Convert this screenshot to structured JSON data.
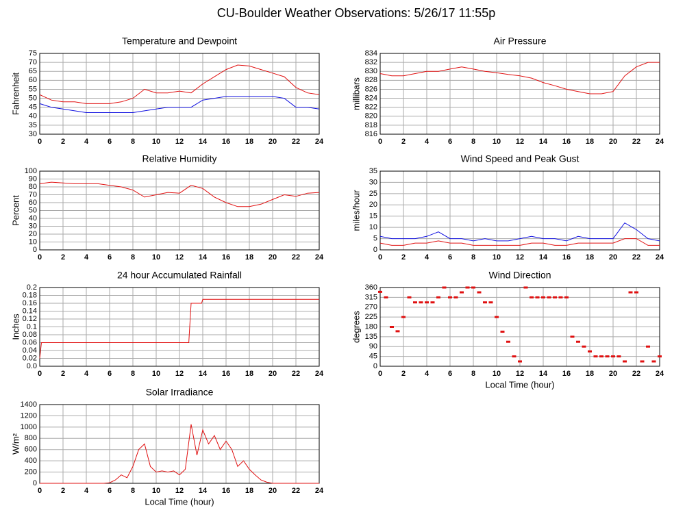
{
  "title": "CU-Boulder Weather Observations: 5/26/17 11:55p",
  "chart_data": [
    {
      "type": "line",
      "title": "Temperature and Dewpoint",
      "ylabel": "Fahrenheit",
      "x": [
        0,
        1,
        2,
        3,
        4,
        5,
        6,
        7,
        8,
        9,
        10,
        11,
        12,
        13,
        14,
        15,
        16,
        17,
        18,
        19,
        20,
        21,
        22,
        23,
        24
      ],
      "series": [
        {
          "name": "Temperature",
          "color": "#e01010",
          "values": [
            52,
            49,
            48,
            48,
            47,
            47,
            47,
            48,
            50,
            55,
            53,
            53,
            54,
            53,
            58,
            62,
            66,
            68.5,
            68,
            66,
            64,
            62,
            56,
            53,
            52
          ]
        },
        {
          "name": "Dewpoint",
          "color": "#1010e0",
          "values": [
            47,
            45,
            44,
            43,
            42,
            42,
            42,
            42,
            42,
            43,
            44,
            45,
            45,
            45,
            49,
            50,
            51,
            51,
            51,
            51,
            51,
            50,
            45,
            45,
            44
          ]
        }
      ],
      "xlim": [
        0,
        24
      ],
      "xticks": [
        0,
        2,
        4,
        6,
        8,
        10,
        12,
        14,
        16,
        18,
        20,
        22,
        24
      ],
      "ylim": [
        30,
        75
      ],
      "yticks": [
        30,
        35,
        40,
        45,
        50,
        55,
        60,
        65,
        70,
        75
      ],
      "grid": true
    },
    {
      "type": "line",
      "title": "Air Pressure",
      "ylabel": "millibars",
      "x": [
        0,
        1,
        2,
        3,
        4,
        5,
        6,
        7,
        8,
        9,
        10,
        11,
        12,
        13,
        14,
        15,
        16,
        17,
        18,
        19,
        20,
        21,
        22,
        23,
        24
      ],
      "series": [
        {
          "name": "Pressure",
          "color": "#e01010",
          "values": [
            829.5,
            829,
            829,
            829.5,
            830,
            830,
            830.5,
            831,
            830.5,
            830,
            829.7,
            829.3,
            829,
            828.5,
            827.5,
            826.8,
            826,
            825.5,
            825,
            825,
            825.5,
            829,
            831,
            832,
            832
          ]
        }
      ],
      "xlim": [
        0,
        24
      ],
      "xticks": [
        0,
        2,
        4,
        6,
        8,
        10,
        12,
        14,
        16,
        18,
        20,
        22,
        24
      ],
      "ylim": [
        816,
        834
      ],
      "yticks": [
        816,
        818,
        820,
        822,
        824,
        826,
        828,
        830,
        832,
        834
      ],
      "grid": true
    },
    {
      "type": "line",
      "title": "Relative Humidity",
      "ylabel": "Percent",
      "x": [
        0,
        1,
        2,
        3,
        4,
        5,
        6,
        7,
        8,
        9,
        10,
        11,
        12,
        13,
        14,
        15,
        16,
        17,
        18,
        19,
        20,
        21,
        22,
        23,
        24
      ],
      "series": [
        {
          "name": "Humidity",
          "color": "#e01010",
          "values": [
            84,
            86,
            85,
            84,
            84,
            84,
            82,
            80,
            76,
            67,
            70,
            73,
            72,
            82,
            78,
            67,
            60,
            55,
            55,
            58,
            64,
            70,
            68,
            72,
            73
          ]
        }
      ],
      "xlim": [
        0,
        24
      ],
      "xticks": [
        0,
        2,
        4,
        6,
        8,
        10,
        12,
        14,
        16,
        18,
        20,
        22,
        24
      ],
      "ylim": [
        0,
        100
      ],
      "yticks": [
        0,
        10,
        20,
        30,
        40,
        50,
        60,
        70,
        80,
        90,
        100
      ],
      "grid": true
    },
    {
      "type": "line",
      "title": "Wind Speed and Peak Gust",
      "ylabel": "miles/hour",
      "x": [
        0,
        1,
        2,
        3,
        4,
        5,
        6,
        7,
        8,
        9,
        10,
        11,
        12,
        13,
        14,
        15,
        16,
        17,
        18,
        19,
        20,
        21,
        22,
        23,
        24
      ],
      "series": [
        {
          "name": "Peak Gust",
          "color": "#1010e0",
          "values": [
            6,
            5,
            5,
            5,
            6,
            8,
            5,
            5,
            4,
            5,
            4,
            4,
            5,
            6,
            5,
            5,
            4,
            6,
            5,
            5,
            5,
            12,
            9,
            5,
            4
          ]
        },
        {
          "name": "Wind Speed",
          "color": "#e01010",
          "values": [
            3,
            2,
            2,
            3,
            3,
            4,
            3,
            3,
            2,
            2,
            2,
            2,
            2,
            3,
            3,
            2,
            2,
            3,
            3,
            3,
            3,
            5,
            5,
            2,
            2
          ]
        }
      ],
      "xlim": [
        0,
        24
      ],
      "xticks": [
        0,
        2,
        4,
        6,
        8,
        10,
        12,
        14,
        16,
        18,
        20,
        22,
        24
      ],
      "ylim": [
        0,
        35
      ],
      "yticks": [
        0,
        5,
        10,
        15,
        20,
        25,
        30,
        35
      ],
      "grid": true
    },
    {
      "type": "line",
      "title": "24 hour Accumulated Rainfall",
      "ylabel": "Inches",
      "x": [
        0,
        0.15,
        12.8,
        13,
        13.9,
        14,
        24
      ],
      "series": [
        {
          "name": "Rainfall",
          "color": "#e01010",
          "values": [
            0.02,
            0.06,
            0.06,
            0.16,
            0.16,
            0.17,
            0.17
          ]
        }
      ],
      "xlim": [
        0,
        24
      ],
      "xticks": [
        0,
        2,
        4,
        6,
        8,
        10,
        12,
        14,
        16,
        18,
        20,
        22,
        24
      ],
      "ylim": [
        0,
        0.2
      ],
      "yticks": [
        {
          "value": 0,
          "label": "0.0"
        },
        0.02,
        0.04,
        0.06,
        0.08,
        0.1,
        0.12,
        0.14,
        0.16,
        0.18,
        0.2
      ],
      "grid": true
    },
    {
      "type": "scatter",
      "title": "Wind Direction",
      "ylabel": "degrees",
      "xlabel": "Local Time (hour)",
      "x": [
        0,
        0.5,
        1,
        1.5,
        2,
        2.5,
        3,
        3.5,
        4,
        4.5,
        5,
        5.5,
        6,
        6.5,
        7,
        7.5,
        8,
        8.5,
        9,
        9.5,
        10,
        10.5,
        11,
        11.5,
        12,
        12.5,
        13,
        13.5,
        14,
        14.5,
        15,
        15.5,
        16,
        16.5,
        17,
        17.5,
        18,
        18.5,
        19,
        19.5,
        20,
        20.5,
        21,
        21.5,
        22,
        22.5,
        23,
        23.5,
        24
      ],
      "series": [
        {
          "name": "Direction",
          "color": "#e01010",
          "values": [
            340,
            315,
            180,
            160,
            225,
            315,
            292,
            292,
            292,
            292,
            315,
            360,
            315,
            315,
            338,
            360,
            360,
            338,
            292,
            292,
            225,
            158,
            112,
            45,
            22,
            360,
            315,
            315,
            315,
            315,
            315,
            315,
            315,
            135,
            112,
            90,
            68,
            45,
            45,
            45,
            45,
            45,
            22,
            338,
            338,
            22,
            90,
            22,
            45
          ]
        }
      ],
      "xlim": [
        0,
        24
      ],
      "xticks": [
        0,
        2,
        4,
        6,
        8,
        10,
        12,
        14,
        16,
        18,
        20,
        22,
        24
      ],
      "ylim": [
        0,
        360
      ],
      "yticks": [
        0,
        45,
        90,
        135,
        180,
        225,
        270,
        315,
        360
      ],
      "grid": true
    },
    {
      "type": "line",
      "title": "Solar Irradiance",
      "ylabel": "W/m²",
      "xlabel": "Local Time (hour)",
      "x": [
        0,
        0.5,
        1,
        1.5,
        2,
        2.5,
        3,
        3.5,
        4,
        4.5,
        5,
        5.5,
        6,
        6.5,
        7,
        7.5,
        8,
        8.5,
        9,
        9.5,
        10,
        10.5,
        11,
        11.5,
        12,
        12.5,
        13,
        13.5,
        14,
        14.5,
        15,
        15.5,
        16,
        16.5,
        17,
        17.5,
        18,
        18.5,
        19,
        19.5,
        20,
        20.5,
        21,
        21.5,
        22,
        22.5,
        23,
        23.5,
        24
      ],
      "series": [
        {
          "name": "Irradiance",
          "color": "#e01010",
          "values": [
            0,
            0,
            0,
            0,
            0,
            0,
            0,
            0,
            0,
            0,
            0,
            0,
            10,
            60,
            150,
            100,
            300,
            600,
            700,
            300,
            200,
            220,
            200,
            220,
            150,
            250,
            1050,
            500,
            950,
            700,
            850,
            600,
            750,
            600,
            300,
            400,
            250,
            150,
            60,
            20,
            0,
            0,
            0,
            0,
            0,
            0,
            0,
            0,
            0
          ]
        }
      ],
      "xlim": [
        0,
        24
      ],
      "xticks": [
        0,
        2,
        4,
        6,
        8,
        10,
        12,
        14,
        16,
        18,
        20,
        22,
        24
      ],
      "ylim": [
        0,
        1400
      ],
      "yticks": [
        0,
        200,
        400,
        600,
        800,
        1000,
        1200,
        1400
      ],
      "grid": true
    }
  ]
}
